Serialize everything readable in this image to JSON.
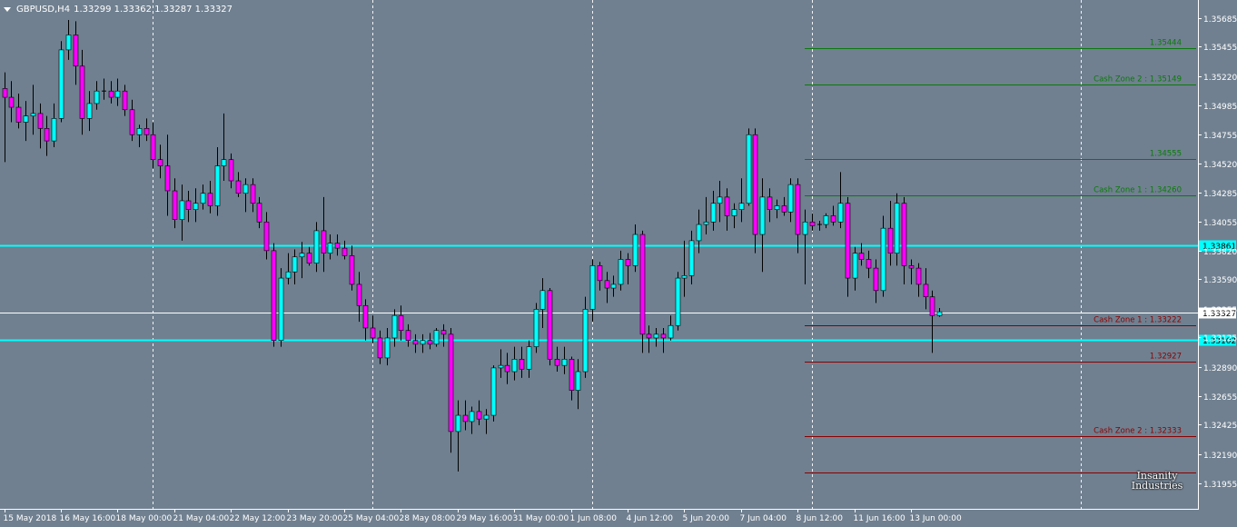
{
  "header": {
    "symbol_label": "GBPUSD,H4",
    "ohlc_text": "1.33299 1.33362 1.33287 1.33327"
  },
  "watermark_text": "Insanity Industries",
  "colors": {
    "background": "#708090",
    "axis_text": "#ffffff",
    "grid": "#ffffff",
    "bull_body": "#00ffff",
    "bear_body": "#ff00ff",
    "wick": "#000000",
    "support_line": "#00ffff",
    "bid_line": "#ffffff",
    "upper_zone": "#0a7a0a",
    "lower_zone": "#8b0000"
  },
  "chart_data": {
    "type": "candlestick",
    "symbol": "GBPUSD",
    "timeframe": "H4",
    "ylim": [
      1.3175,
      1.3583
    ],
    "price_ticks": [
      "1.35685",
      "1.35455",
      "1.35220",
      "1.34985",
      "1.34755",
      "1.34520",
      "1.34285",
      "1.34055",
      "1.33820",
      "1.33590",
      "1.33355",
      "1.33125",
      "1.32890",
      "1.32655",
      "1.32425",
      "1.32190",
      "1.31955"
    ],
    "time_labels": [
      {
        "index": 0,
        "label": "15 May 2018"
      },
      {
        "index": 8,
        "label": "16 May 16:00"
      },
      {
        "index": 16,
        "label": "18 May 00:00"
      },
      {
        "index": 24,
        "label": "21 May 04:00"
      },
      {
        "index": 32,
        "label": "22 May 12:00"
      },
      {
        "index": 40,
        "label": "23 May 20:00"
      },
      {
        "index": 48,
        "label": "25 May 04:00"
      },
      {
        "index": 56,
        "label": "28 May 08:00"
      },
      {
        "index": 64,
        "label": "29 May 16:00"
      },
      {
        "index": 72,
        "label": "31 May 00:00"
      },
      {
        "index": 80,
        "label": "1 Jun 08:00"
      },
      {
        "index": 88,
        "label": "4 Jun 12:00"
      },
      {
        "index": 96,
        "label": "5 Jun 20:00"
      },
      {
        "index": 104,
        "label": "7 Jun 04:00"
      },
      {
        "index": 112,
        "label": "8 Jun 12:00"
      },
      {
        "index": 120,
        "label": "11 Jun 16:00"
      },
      {
        "index": 128,
        "label": "13 Jun 00:00"
      }
    ],
    "period_separators": [
      21,
      52,
      83,
      114,
      152
    ],
    "horizontal_lines": [
      {
        "price": 1.33861,
        "label": "1.33861",
        "kind": "support"
      },
      {
        "price": 1.33102,
        "label": "1.33102",
        "kind": "support"
      },
      {
        "price": 1.33327,
        "label": "1.33327",
        "kind": "bid"
      }
    ],
    "zones": [
      {
        "price": 1.35444,
        "label": "1.35444",
        "side": "upper"
      },
      {
        "price": 1.35149,
        "label": "Cash Zone 2 : 1.35149",
        "side": "upper"
      },
      {
        "price": 1.34555,
        "label": "1.34555",
        "side": "upper"
      },
      {
        "price": 1.3426,
        "label": "Cash Zone 1 : 1.34260",
        "side": "upper"
      },
      {
        "price": 1.33222,
        "label": "Cash Zone 1 : 1.33222",
        "side": "lower"
      },
      {
        "price": 1.32927,
        "label": "1.32927",
        "side": "lower"
      },
      {
        "price": 1.32333,
        "label": "Cash Zone 2 : 1.32333",
        "side": "lower"
      },
      {
        "price": 1.3204,
        "label": "",
        "side": "lower"
      }
    ],
    "zone_start_index": 113,
    "candles": [
      [
        1.3512,
        1.3525,
        1.3453,
        1.3505
      ],
      [
        1.3505,
        1.3518,
        1.3485,
        1.3497
      ],
      [
        1.3497,
        1.3508,
        1.348,
        1.3485
      ],
      [
        1.3485,
        1.3502,
        1.347,
        1.349
      ],
      [
        1.349,
        1.3515,
        1.3475,
        1.3492
      ],
      [
        1.3492,
        1.35,
        1.3464,
        1.348
      ],
      [
        1.348,
        1.349,
        1.3458,
        1.347
      ],
      [
        1.347,
        1.35,
        1.3465,
        1.3488
      ],
      [
        1.3488,
        1.355,
        1.3485,
        1.3543
      ],
      [
        1.3543,
        1.3567,
        1.3535,
        1.3555
      ],
      [
        1.3555,
        1.3566,
        1.3515,
        1.353
      ],
      [
        1.353,
        1.3543,
        1.3475,
        1.3488
      ],
      [
        1.3488,
        1.351,
        1.3478,
        1.35
      ],
      [
        1.35,
        1.3518,
        1.3495,
        1.351
      ],
      [
        1.351,
        1.352,
        1.3503,
        1.351
      ],
      [
        1.351,
        1.3518,
        1.35,
        1.3505
      ],
      [
        1.3505,
        1.352,
        1.3498,
        1.351
      ],
      [
        1.351,
        1.3515,
        1.349,
        1.3495
      ],
      [
        1.3495,
        1.3503,
        1.347,
        1.3475
      ],
      [
        1.3475,
        1.3483,
        1.3465,
        1.348
      ],
      [
        1.348,
        1.3488,
        1.347,
        1.3475
      ],
      [
        1.3475,
        1.3485,
        1.3448,
        1.3455
      ],
      [
        1.3455,
        1.3467,
        1.344,
        1.345
      ],
      [
        1.345,
        1.3475,
        1.341,
        1.343
      ],
      [
        1.343,
        1.344,
        1.34,
        1.3407
      ],
      [
        1.3407,
        1.3435,
        1.339,
        1.3422
      ],
      [
        1.3422,
        1.343,
        1.3405,
        1.3415
      ],
      [
        1.3415,
        1.3432,
        1.3405,
        1.342
      ],
      [
        1.342,
        1.3435,
        1.3415,
        1.3428
      ],
      [
        1.3428,
        1.3438,
        1.3412,
        1.3418
      ],
      [
        1.3418,
        1.3465,
        1.341,
        1.345
      ],
      [
        1.345,
        1.3492,
        1.3438,
        1.3455
      ],
      [
        1.3455,
        1.346,
        1.3432,
        1.3438
      ],
      [
        1.3438,
        1.3445,
        1.3425,
        1.3428
      ],
      [
        1.3428,
        1.344,
        1.3413,
        1.3435
      ],
      [
        1.3435,
        1.344,
        1.3413,
        1.342
      ],
      [
        1.342,
        1.3425,
        1.34,
        1.3405
      ],
      [
        1.3405,
        1.3413,
        1.3375,
        1.3382
      ],
      [
        1.3382,
        1.3388,
        1.3305,
        1.331
      ],
      [
        1.331,
        1.3368,
        1.3305,
        1.336
      ],
      [
        1.336,
        1.338,
        1.3355,
        1.3365
      ],
      [
        1.3365,
        1.3383,
        1.3355,
        1.3377
      ],
      [
        1.3377,
        1.3389,
        1.336,
        1.338
      ],
      [
        1.338,
        1.3385,
        1.337,
        1.3372
      ],
      [
        1.3372,
        1.3405,
        1.3365,
        1.3398
      ],
      [
        1.3398,
        1.3425,
        1.3365,
        1.338
      ],
      [
        1.338,
        1.3395,
        1.3375,
        1.3388
      ],
      [
        1.3388,
        1.3395,
        1.3378,
        1.3384
      ],
      [
        1.3384,
        1.339,
        1.3375,
        1.3378
      ],
      [
        1.3378,
        1.3386,
        1.335,
        1.3355
      ],
      [
        1.3355,
        1.3365,
        1.3325,
        1.3338
      ],
      [
        1.3338,
        1.3343,
        1.331,
        1.332
      ],
      [
        1.332,
        1.333,
        1.3308,
        1.3312
      ],
      [
        1.3312,
        1.3318,
        1.3291,
        1.3296
      ],
      [
        1.3296,
        1.332,
        1.329,
        1.3312
      ],
      [
        1.3312,
        1.3335,
        1.3305,
        1.333
      ],
      [
        1.333,
        1.3338,
        1.331,
        1.3318
      ],
      [
        1.3318,
        1.3323,
        1.3305,
        1.331
      ],
      [
        1.331,
        1.3315,
        1.33,
        1.3307
      ],
      [
        1.3307,
        1.3315,
        1.33,
        1.331
      ],
      [
        1.331,
        1.3316,
        1.3303,
        1.3307
      ],
      [
        1.3307,
        1.332,
        1.3305,
        1.3318
      ],
      [
        1.3318,
        1.3323,
        1.3305,
        1.3315
      ],
      [
        1.3315,
        1.332,
        1.322,
        1.3237
      ],
      [
        1.3237,
        1.3262,
        1.3205,
        1.325
      ],
      [
        1.325,
        1.3262,
        1.3238,
        1.3245
      ],
      [
        1.3245,
        1.3257,
        1.3235,
        1.3253
      ],
      [
        1.3253,
        1.3262,
        1.3242,
        1.3247
      ],
      [
        1.3247,
        1.3255,
        1.3235,
        1.325
      ],
      [
        1.325,
        1.329,
        1.3245,
        1.3288
      ],
      [
        1.3288,
        1.3303,
        1.328,
        1.329
      ],
      [
        1.329,
        1.33,
        1.3275,
        1.3285
      ],
      [
        1.3285,
        1.3305,
        1.3278,
        1.3295
      ],
      [
        1.3295,
        1.3305,
        1.328,
        1.3287
      ],
      [
        1.3287,
        1.331,
        1.328,
        1.3305
      ],
      [
        1.3305,
        1.334,
        1.33,
        1.3335
      ],
      [
        1.3335,
        1.336,
        1.332,
        1.335
      ],
      [
        1.335,
        1.3352,
        1.329,
        1.3295
      ],
      [
        1.3295,
        1.3305,
        1.3285,
        1.329
      ],
      [
        1.329,
        1.3305,
        1.3283,
        1.3295
      ],
      [
        1.3295,
        1.3297,
        1.3262,
        1.327
      ],
      [
        1.327,
        1.3295,
        1.3255,
        1.3285
      ],
      [
        1.3285,
        1.3345,
        1.328,
        1.3335
      ],
      [
        1.3335,
        1.3375,
        1.3325,
        1.337
      ],
      [
        1.337,
        1.3373,
        1.335,
        1.3358
      ],
      [
        1.3358,
        1.3365,
        1.334,
        1.3352
      ],
      [
        1.3352,
        1.3362,
        1.3345,
        1.3355
      ],
      [
        1.3355,
        1.3382,
        1.335,
        1.3375
      ],
      [
        1.3375,
        1.338,
        1.3355,
        1.337
      ],
      [
        1.337,
        1.3403,
        1.3365,
        1.3395
      ],
      [
        1.3395,
        1.3398,
        1.33,
        1.3315
      ],
      [
        1.3315,
        1.3322,
        1.33,
        1.3312
      ],
      [
        1.3312,
        1.332,
        1.3305,
        1.3315
      ],
      [
        1.3315,
        1.332,
        1.33,
        1.3312
      ],
      [
        1.3312,
        1.333,
        1.331,
        1.3322
      ],
      [
        1.3322,
        1.3365,
        1.3318,
        1.336
      ],
      [
        1.336,
        1.339,
        1.3345,
        1.3362
      ],
      [
        1.3362,
        1.3398,
        1.3355,
        1.339
      ],
      [
        1.339,
        1.3415,
        1.338,
        1.3403
      ],
      [
        1.3403,
        1.3425,
        1.3395,
        1.3405
      ],
      [
        1.3405,
        1.343,
        1.3398,
        1.342
      ],
      [
        1.342,
        1.3438,
        1.3405,
        1.3425
      ],
      [
        1.3425,
        1.3432,
        1.3398,
        1.341
      ],
      [
        1.341,
        1.342,
        1.34,
        1.3415
      ],
      [
        1.3415,
        1.344,
        1.3405,
        1.342
      ],
      [
        1.342,
        1.348,
        1.3418,
        1.3475
      ],
      [
        1.3475,
        1.348,
        1.338,
        1.3395
      ],
      [
        1.3395,
        1.344,
        1.3365,
        1.3425
      ],
      [
        1.3425,
        1.3432,
        1.3405,
        1.3415
      ],
      [
        1.3415,
        1.3423,
        1.3408,
        1.3418
      ],
      [
        1.3418,
        1.3425,
        1.341,
        1.3413
      ],
      [
        1.3413,
        1.344,
        1.3405,
        1.3435
      ],
      [
        1.3435,
        1.344,
        1.338,
        1.3395
      ],
      [
        1.3395,
        1.3415,
        1.3355,
        1.3405
      ],
      [
        1.3405,
        1.3412,
        1.3398,
        1.3402
      ],
      [
        1.3402,
        1.3406,
        1.3398,
        1.3403
      ],
      [
        1.3403,
        1.3412,
        1.34,
        1.341
      ],
      [
        1.341,
        1.3418,
        1.3402,
        1.3405
      ],
      [
        1.3405,
        1.3445,
        1.34,
        1.342
      ],
      [
        1.342,
        1.3425,
        1.3345,
        1.336
      ],
      [
        1.336,
        1.3385,
        1.335,
        1.338
      ],
      [
        1.338,
        1.3388,
        1.337,
        1.3375
      ],
      [
        1.3375,
        1.3382,
        1.336,
        1.3368
      ],
      [
        1.3368,
        1.3375,
        1.334,
        1.335
      ],
      [
        1.335,
        1.341,
        1.3345,
        1.34
      ],
      [
        1.34,
        1.3422,
        1.337,
        1.338
      ],
      [
        1.338,
        1.3428,
        1.337,
        1.342
      ],
      [
        1.342,
        1.3425,
        1.3355,
        1.337
      ],
      [
        1.337,
        1.3375,
        1.3355,
        1.3368
      ],
      [
        1.3368,
        1.3372,
        1.3345,
        1.3355
      ],
      [
        1.3355,
        1.3368,
        1.3335,
        1.3345
      ],
      [
        1.3345,
        1.335,
        1.33,
        1.333
      ],
      [
        1.333,
        1.3336,
        1.3329,
        1.3333
      ]
    ]
  }
}
